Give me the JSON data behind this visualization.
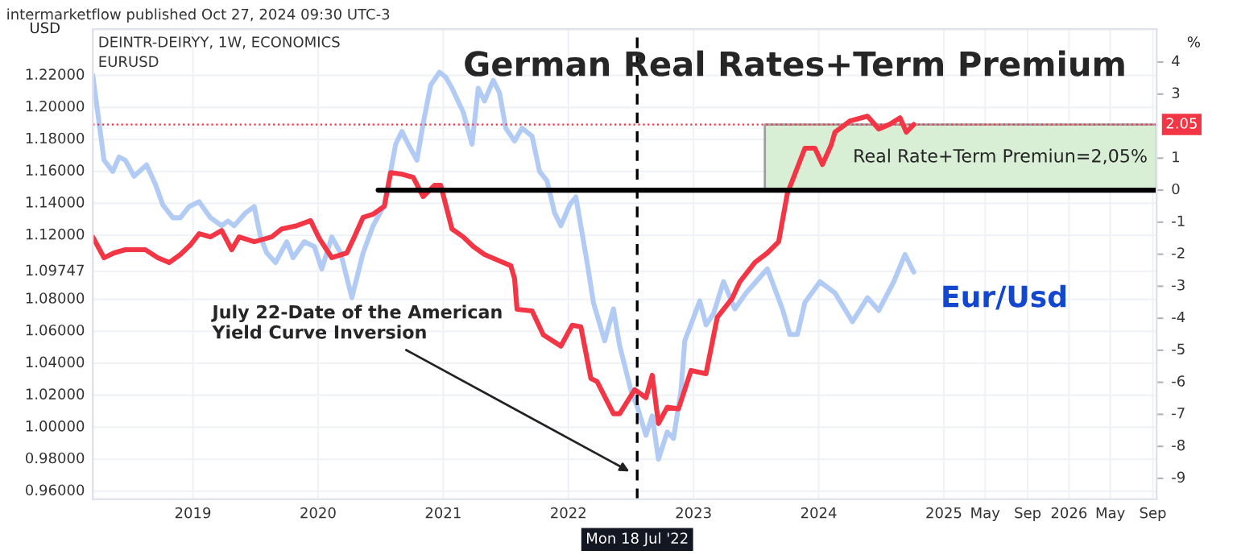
{
  "chart_data": {
    "type": "line",
    "title": "German Real Rates+Term Premium",
    "subtitle": "DEINTR-DEIRYY, 1W, ECONOMICS\nEURUSD",
    "ylabel": "USD",
    "y2label": "%",
    "annotations": [
      "intermarketflow published Oct 27, 2024 09:30 UTC-3",
      "July 22-Date of the American\nYield Curve Inversion"
    ],
    "xlim": [
      2018.2,
      2026.7
    ],
    "xticks": [
      2019,
      2020,
      2021,
      2022,
      2023,
      2024,
      2025,
      {
        "value": 2025.33,
        "label": "May"
      },
      {
        "value": 2025.67,
        "label": "Sep"
      },
      2026,
      {
        "value": 2026.33,
        "label": "May"
      },
      {
        "value": 2026.67,
        "label": "Sep"
      }
    ],
    "ylim": [
      0.955,
      1.249
    ],
    "yticks": [
      {
        "value": 0.96,
        "label": "0.96000"
      },
      {
        "value": 0.98,
        "label": "0.98000"
      },
      {
        "value": 1.0,
        "label": "1.00000"
      },
      {
        "value": 1.02,
        "label": "1.02000"
      },
      {
        "value": 1.04,
        "label": "1.04000"
      },
      {
        "value": 1.06,
        "label": "1.06000"
      },
      {
        "value": 1.08,
        "label": "1.08000"
      },
      {
        "value": 1.09747,
        "label": "1.09747"
      },
      {
        "value": 1.12,
        "label": "1.12000"
      },
      {
        "value": 1.14,
        "label": "1.14000"
      },
      {
        "value": 1.16,
        "label": "1.16000"
      },
      {
        "value": 1.18,
        "label": "1.18000"
      },
      {
        "value": 1.2,
        "label": "1.20000"
      },
      {
        "value": 1.22,
        "label": "1.22000"
      }
    ],
    "y2lim": [
      -9.65,
      5.03
    ],
    "y2ticks": [
      4,
      3,
      1,
      0,
      -1,
      -2,
      -3,
      -4,
      -5,
      -6,
      -7,
      -8,
      -9
    ],
    "grid": true,
    "ref_lines": [
      {
        "axis": "y2",
        "value": 2.05,
        "label": "2.05",
        "color": "#f23645",
        "line_style": "dotted"
      },
      {
        "axis": "x",
        "value": 2022.55,
        "label": "Mon 18 Jul '22",
        "color": "#000000",
        "line_style": "dashed"
      }
    ],
    "series": [
      {
        "type": "area",
        "axis": "y2",
        "name": "Real Rate+Term Premiun=2,05%",
        "color": "#d8efd6",
        "x": [
          2023.57,
          2026.7
        ],
        "values": [
          2.05,
          2.05
        ]
      },
      {
        "name": "Eur/Usd",
        "color": "#b2cbf5",
        "x": [
          2018.2,
          2018.29,
          2018.36,
          2018.41,
          2018.46,
          2018.53,
          2018.63,
          2018.7,
          2018.76,
          2018.84,
          2018.9,
          2018.97,
          2019.05,
          2019.14,
          2019.23,
          2019.28,
          2019.33,
          2019.42,
          2019.49,
          2019.54,
          2019.59,
          2019.66,
          2019.75,
          2019.8,
          2019.89,
          2019.97,
          2020.03,
          2020.11,
          2020.18,
          2020.27,
          2020.36,
          2020.44,
          2020.53,
          2020.62,
          2020.67,
          2020.72,
          2020.79,
          2020.84,
          2020.9,
          2020.97,
          2021.02,
          2021.07,
          2021.16,
          2021.23,
          2021.28,
          2021.33,
          2021.4,
          2021.45,
          2021.5,
          2021.57,
          2021.63,
          2021.71,
          2021.77,
          2021.83,
          2021.89,
          2021.94,
          2022.01,
          2022.06,
          2022.15,
          2022.2,
          2022.29,
          2022.36,
          2022.41,
          2022.5,
          2022.55,
          2022.62,
          2022.67,
          2022.72,
          2022.79,
          2022.84,
          2022.9,
          2022.93,
          2023.05,
          2023.1,
          2023.16,
          2023.24,
          2023.33,
          2023.42,
          2023.59,
          2023.71,
          2023.77,
          2023.83,
          2023.89,
          2024.01,
          2024.13,
          2024.27,
          2024.39,
          2024.48,
          2024.6,
          2024.69,
          2024.76
        ],
        "values": [
          1.22,
          1.167,
          1.16,
          1.169,
          1.167,
          1.157,
          1.164,
          1.152,
          1.139,
          1.131,
          1.131,
          1.138,
          1.141,
          1.131,
          1.126,
          1.129,
          1.126,
          1.134,
          1.138,
          1.119,
          1.109,
          1.103,
          1.116,
          1.106,
          1.116,
          1.113,
          1.099,
          1.119,
          1.109,
          1.081,
          1.109,
          1.126,
          1.139,
          1.177,
          1.185,
          1.177,
          1.167,
          1.19,
          1.214,
          1.222,
          1.219,
          1.212,
          1.197,
          1.177,
          1.212,
          1.204,
          1.217,
          1.209,
          1.187,
          1.179,
          1.187,
          1.182,
          1.16,
          1.154,
          1.134,
          1.126,
          1.139,
          1.144,
          1.103,
          1.078,
          1.054,
          1.074,
          1.051,
          1.023,
          1.013,
          0.995,
          1.007,
          0.98,
          0.997,
          0.993,
          1.023,
          1.054,
          1.079,
          1.064,
          1.071,
          1.091,
          1.074,
          1.084,
          1.099,
          1.074,
          1.058,
          1.058,
          1.078,
          1.091,
          1.084,
          1.066,
          1.081,
          1.073,
          1.091,
          1.108,
          1.097
        ]
      },
      {
        "axis": "y2",
        "color": "#f23645",
        "x": [
          2018.2,
          2018.29,
          2018.37,
          2018.46,
          2018.62,
          2018.72,
          2018.81,
          2018.9,
          2018.98,
          2019.05,
          2019.14,
          2019.23,
          2019.31,
          2019.37,
          2019.49,
          2019.63,
          2019.71,
          2019.83,
          2019.94,
          2020.01,
          2020.11,
          2020.23,
          2020.29,
          2020.36,
          2020.44,
          2020.53,
          2020.58,
          2020.67,
          2020.76,
          2020.84,
          2020.93,
          2020.98,
          2021.07,
          2021.16,
          2021.24,
          2021.33,
          2021.45,
          2021.54,
          2021.57,
          2021.59,
          2021.71,
          2021.8,
          2021.94,
          2022.03,
          2022.1,
          2022.18,
          2022.23,
          2022.36,
          2022.41,
          2022.53,
          2022.62,
          2022.67,
          2022.72,
          2022.79,
          2022.88,
          2022.98,
          2023.1,
          2023.19,
          2023.31,
          2023.37,
          2023.49,
          2023.59,
          2023.68,
          2023.75,
          2023.8,
          2023.89,
          2023.97,
          2024.03,
          2024.1,
          2024.13,
          2024.25,
          2024.39,
          2024.48,
          2024.57,
          2024.65,
          2024.7,
          2024.76
        ],
        "values": [
          -1.46,
          -2.11,
          -1.96,
          -1.86,
          -1.86,
          -2.11,
          -2.26,
          -2.01,
          -1.71,
          -1.36,
          -1.46,
          -1.26,
          -1.86,
          -1.46,
          -1.61,
          -1.46,
          -1.21,
          -1.11,
          -0.95,
          -1.51,
          -2.11,
          -1.96,
          -1.46,
          -0.85,
          -0.75,
          -0.5,
          0.55,
          0.5,
          0.4,
          -0.2,
          0.15,
          0.15,
          -1.21,
          -1.46,
          -1.76,
          -2.01,
          -2.21,
          -2.36,
          -2.76,
          -3.72,
          -3.77,
          -4.52,
          -4.87,
          -4.22,
          -4.27,
          -5.88,
          -5.98,
          -6.98,
          -6.98,
          -6.23,
          -6.48,
          -5.78,
          -7.29,
          -6.78,
          -6.83,
          -5.63,
          -5.73,
          -3.97,
          -3.37,
          -2.86,
          -2.26,
          -1.96,
          -1.61,
          -0.1,
          0.4,
          1.31,
          1.31,
          0.8,
          1.41,
          1.81,
          2.16,
          2.31,
          1.91,
          2.06,
          2.26,
          1.81,
          2.05
        ]
      },
      {
        "axis": "y2",
        "color": "#000000",
        "x": [
          2020.48,
          2026.7
        ],
        "values": [
          0,
          0
        ]
      }
    ]
  }
}
